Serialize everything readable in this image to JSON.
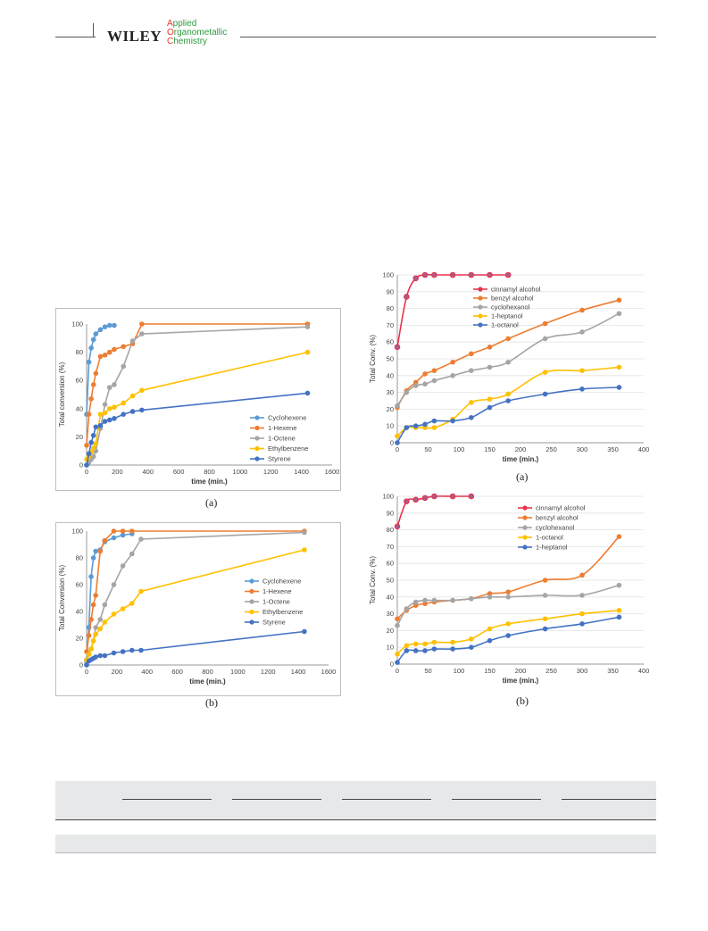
{
  "header": {
    "publisher": "WILEY",
    "journal_lines": [
      {
        "cap": "A",
        "rest": "pplied"
      },
      {
        "cap": "O",
        "rest": "rganometallic"
      },
      {
        "cap": "C",
        "rest": "hemistry"
      }
    ]
  },
  "captions": [
    "(a)",
    "(b)",
    "(a)",
    "(b)"
  ],
  "colors": {
    "cyclohexene": "#5b9bd5",
    "hexene": "#ed7d31",
    "octene": "#a5a5a5",
    "ethylbenzene": "#ffc000",
    "styrene": "#4472c4",
    "cinnamyl": "#e8334a"
  },
  "chart_data": [
    {
      "type": "line",
      "xlabel": "time (min.)",
      "ylabel": "Total conversion (%)",
      "xlim": [
        0,
        1600
      ],
      "ylim": [
        0,
        100
      ],
      "xticks": [
        0,
        200,
        400,
        600,
        800,
        1000,
        1200,
        1400,
        1600
      ],
      "yticks": [
        0,
        20,
        40,
        60,
        80,
        100
      ],
      "legend_position": "bottom-right",
      "series": [
        {
          "name": "Cyclohexene",
          "color": "#5b9bd5",
          "x": [
            0,
            15,
            30,
            45,
            60,
            90,
            120,
            150,
            180
          ],
          "y": [
            36,
            73,
            83,
            89,
            93,
            96,
            98,
            99,
            99
          ]
        },
        {
          "name": "1-Hexene",
          "color": "#ed7d31",
          "x": [
            0,
            15,
            30,
            45,
            60,
            90,
            120,
            150,
            180,
            240,
            300,
            360,
            1440
          ],
          "y": [
            14,
            36,
            47,
            57,
            65,
            77,
            78,
            80,
            82,
            84,
            86,
            100,
            100
          ]
        },
        {
          "name": "1-Octene",
          "color": "#a5a5a5",
          "x": [
            0,
            15,
            30,
            45,
            60,
            90,
            120,
            150,
            180,
            240,
            300,
            360,
            1440
          ],
          "y": [
            0,
            2,
            4,
            6,
            10,
            26,
            43,
            55,
            57,
            70,
            88,
            93,
            98
          ]
        },
        {
          "name": "Ethylbenzene",
          "color": "#ffc000",
          "x": [
            0,
            15,
            30,
            45,
            60,
            90,
            120,
            150,
            180,
            240,
            300,
            360,
            1440
          ],
          "y": [
            4,
            6,
            9,
            12,
            15,
            36,
            37,
            40,
            41,
            44,
            49,
            53,
            80
          ]
        },
        {
          "name": "Styrene",
          "color": "#4472c4",
          "x": [
            0,
            15,
            30,
            45,
            60,
            90,
            120,
            150,
            180,
            240,
            300,
            360,
            1440
          ],
          "y": [
            0,
            8,
            16,
            21,
            27,
            28,
            31,
            32,
            33,
            36,
            38,
            39,
            51
          ]
        }
      ]
    },
    {
      "type": "line",
      "xlabel": "time (min.)",
      "ylabel": "Total Conversion (%)",
      "xlim": [
        0,
        1600
      ],
      "ylim": [
        0,
        100
      ],
      "xticks": [
        0,
        200,
        400,
        600,
        800,
        1000,
        1200,
        1400,
        1600
      ],
      "yticks": [
        0,
        20,
        40,
        60,
        80,
        100
      ],
      "legend_position": "right",
      "series": [
        {
          "name": "Cyclohexene",
          "color": "#5b9bd5",
          "x": [
            0,
            15,
            30,
            45,
            60,
            90,
            120,
            180,
            240,
            300
          ],
          "y": [
            4,
            28,
            66,
            80,
            85,
            86,
            92,
            95,
            97,
            98
          ]
        },
        {
          "name": "1-Hexene",
          "color": "#ed7d31",
          "x": [
            0,
            15,
            30,
            45,
            60,
            90,
            120,
            180,
            240,
            300,
            1440
          ],
          "y": [
            10,
            22,
            34,
            45,
            52,
            85,
            93,
            100,
            100,
            100,
            100
          ]
        },
        {
          "name": "1-Octene",
          "color": "#a5a5a5",
          "x": [
            0,
            15,
            30,
            45,
            60,
            90,
            120,
            180,
            240,
            300,
            360,
            1440
          ],
          "y": [
            2,
            8,
            12,
            18,
            28,
            34,
            45,
            60,
            74,
            83,
            94,
            99
          ]
        },
        {
          "name": "Ethylbenzene",
          "color": "#ffc000",
          "x": [
            0,
            15,
            30,
            45,
            60,
            90,
            120,
            180,
            240,
            300,
            360,
            1440
          ],
          "y": [
            4,
            8,
            12,
            18,
            23,
            27,
            32,
            38,
            42,
            46,
            55,
            86
          ]
        },
        {
          "name": "Styrene",
          "color": "#4472c4",
          "x": [
            0,
            15,
            30,
            45,
            60,
            90,
            120,
            180,
            240,
            300,
            360,
            1440
          ],
          "y": [
            0,
            3,
            4,
            5,
            6,
            7,
            7,
            9,
            10,
            11,
            11,
            25
          ]
        }
      ]
    },
    {
      "type": "line",
      "xlabel": "time (min.)",
      "ylabel": "Total Conv. (%)",
      "xlim": [
        0,
        400
      ],
      "ylim": [
        0,
        100
      ],
      "xticks": [
        0,
        50,
        100,
        150,
        200,
        250,
        300,
        350,
        400
      ],
      "yticks": [
        0,
        10,
        20,
        30,
        40,
        50,
        60,
        70,
        80,
        90,
        100
      ],
      "legend_position": "top-right",
      "series": [
        {
          "name": "cinnamyl alcohol",
          "color": "#e8334a",
          "x": [
            0,
            15,
            30,
            45,
            60,
            90,
            120,
            150,
            180
          ],
          "y": [
            57,
            87,
            98,
            100,
            100,
            100,
            100,
            100,
            100
          ]
        },
        {
          "name": "benzyl alcohol",
          "color": "#ed7d31",
          "x": [
            0,
            15,
            30,
            45,
            60,
            90,
            120,
            150,
            180,
            240,
            300,
            360
          ],
          "y": [
            21,
            31,
            36,
            41,
            43,
            48,
            53,
            57,
            62,
            71,
            79,
            85
          ]
        },
        {
          "name": "cyclohexanol",
          "color": "#a5a5a5",
          "x": [
            0,
            15,
            30,
            45,
            60,
            90,
            120,
            150,
            180,
            240,
            300,
            360
          ],
          "y": [
            22,
            30,
            34,
            35,
            37,
            40,
            43,
            45,
            48,
            62,
            66,
            77
          ]
        },
        {
          "name": "1-heptanol",
          "color": "#ffc000",
          "x": [
            0,
            15,
            30,
            45,
            60,
            90,
            120,
            150,
            180,
            240,
            300,
            360
          ],
          "y": [
            4,
            9,
            9,
            9,
            9,
            14,
            24,
            26,
            29,
            42,
            43,
            45
          ]
        },
        {
          "name": "1-octanol",
          "color": "#4472c4",
          "x": [
            0,
            15,
            30,
            45,
            60,
            90,
            120,
            150,
            180,
            240,
            300,
            360
          ],
          "y": [
            0,
            9,
            10,
            11,
            13,
            13,
            15,
            21,
            25,
            29,
            32,
            33
          ]
        }
      ]
    },
    {
      "type": "line",
      "xlabel": "time (min.)",
      "ylabel": "Total Conv. (%)",
      "xlim": [
        0,
        400
      ],
      "ylim": [
        0,
        100
      ],
      "xticks": [
        0,
        50,
        100,
        150,
        200,
        250,
        300,
        350,
        400
      ],
      "yticks": [
        0,
        10,
        20,
        30,
        40,
        50,
        60,
        70,
        80,
        90,
        100
      ],
      "legend_position": "top-right",
      "series": [
        {
          "name": "cinnamyl alcohol",
          "color": "#e8334a",
          "x": [
            0,
            15,
            30,
            45,
            60,
            90,
            120
          ],
          "y": [
            82,
            97,
            98,
            99,
            100,
            100,
            100
          ]
        },
        {
          "name": "benzyl alcohol",
          "color": "#ed7d31",
          "x": [
            0,
            15,
            30,
            45,
            60,
            90,
            120,
            150,
            180,
            240,
            300,
            360
          ],
          "y": [
            27,
            32,
            35,
            36,
            37,
            38,
            39,
            42,
            43,
            50,
            53,
            76
          ]
        },
        {
          "name": "cyclohexanol",
          "color": "#a5a5a5",
          "x": [
            0,
            15,
            30,
            45,
            60,
            90,
            120,
            150,
            180,
            240,
            300,
            360
          ],
          "y": [
            23,
            33,
            37,
            38,
            38,
            38,
            39,
            40,
            40,
            41,
            41,
            47
          ]
        },
        {
          "name": "1-octanol",
          "color": "#ffc000",
          "x": [
            0,
            15,
            30,
            45,
            60,
            90,
            120,
            150,
            180,
            240,
            300,
            360
          ],
          "y": [
            6,
            11,
            12,
            12,
            13,
            13,
            15,
            21,
            24,
            27,
            30,
            32
          ]
        },
        {
          "name": "1-heptanol",
          "color": "#4472c4",
          "x": [
            0,
            15,
            30,
            45,
            60,
            90,
            120,
            150,
            180,
            240,
            300,
            360
          ],
          "y": [
            1,
            8,
            8,
            8,
            9,
            9,
            10,
            14,
            17,
            21,
            24,
            28
          ]
        }
      ]
    }
  ]
}
